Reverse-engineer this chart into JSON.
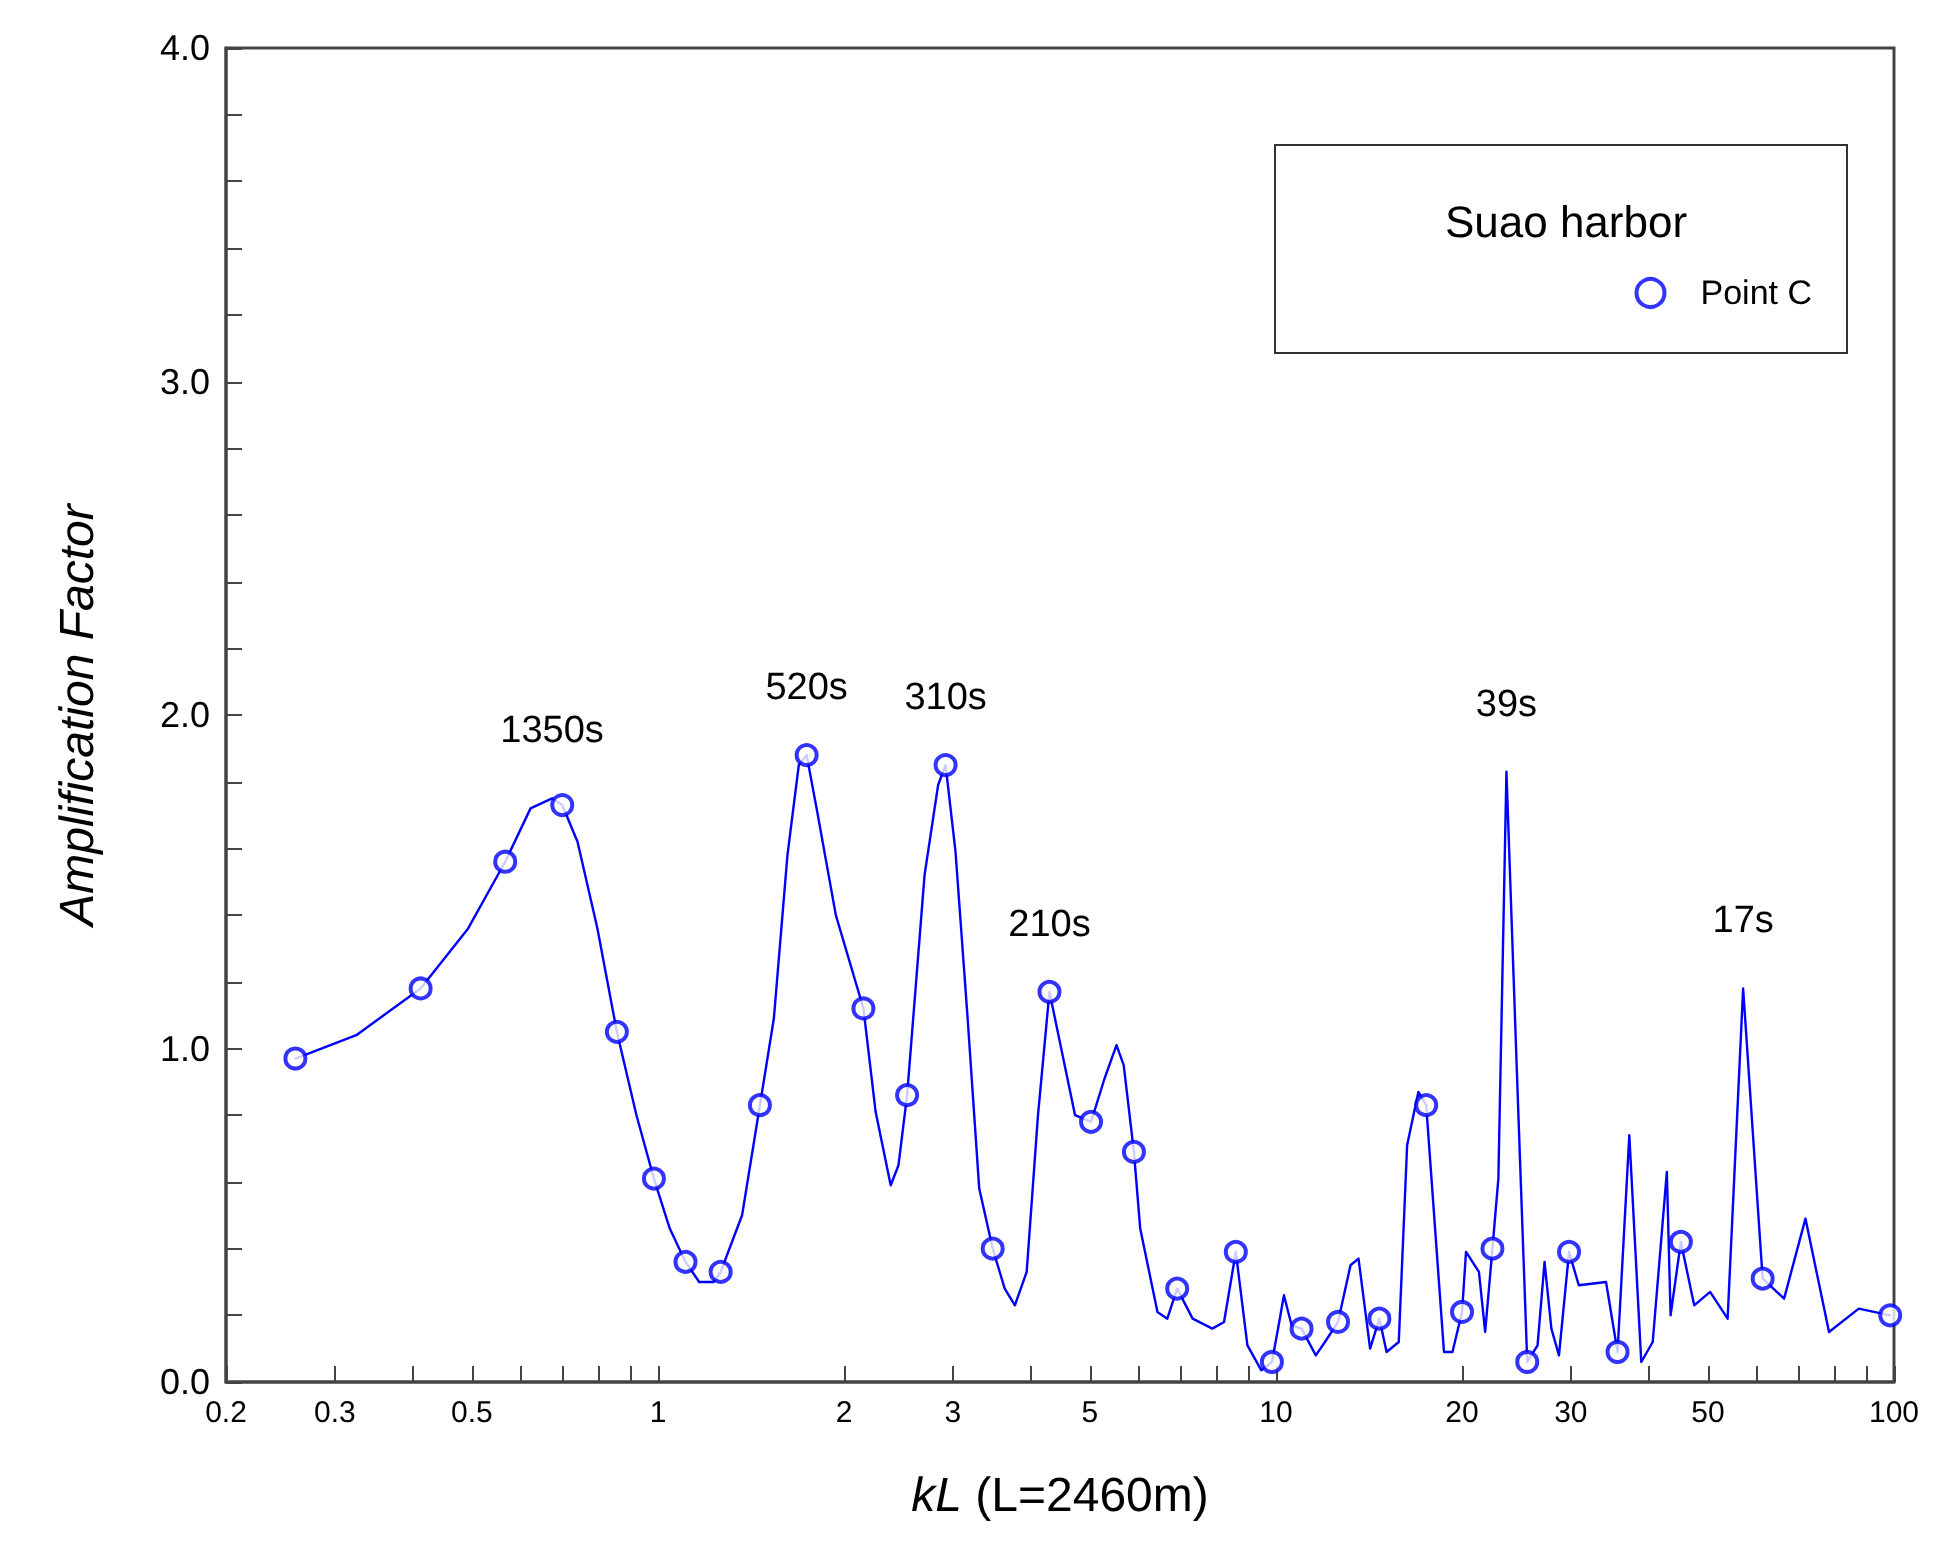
{
  "chart_data": {
    "type": "line",
    "xlabel": "kL (L=2460m)",
    "ylabel": "Amplification Factor",
    "legend_title": "Suao harbor",
    "legend": "top right",
    "grid": false,
    "log": "x",
    "xlim": [
      0.2,
      100
    ],
    "ylim": [
      0,
      4
    ],
    "xticks": [
      0.2,
      0.3,
      {
        "value": 0.4,
        "label": null
      },
      0.5,
      {
        "value": 0.6,
        "label": null
      },
      {
        "value": 0.7,
        "label": null
      },
      {
        "value": 0.8,
        "label": null
      },
      {
        "value": 0.9,
        "label": null
      },
      1,
      2,
      3,
      {
        "value": 4,
        "label": null
      },
      5,
      {
        "value": 6,
        "label": null
      },
      {
        "value": 7,
        "label": null
      },
      {
        "value": 8,
        "label": null
      },
      {
        "value": 9,
        "label": null
      },
      10,
      20,
      30,
      {
        "value": 40,
        "label": null
      },
      50,
      {
        "value": 60,
        "label": null
      },
      {
        "value": 70,
        "label": null
      },
      {
        "value": 80,
        "label": null
      },
      {
        "value": 90,
        "label": null
      },
      100
    ],
    "yticks": [
      {
        "value": 0,
        "label": "0.0"
      },
      {
        "value": 0.2,
        "label": null
      },
      {
        "value": 0.4,
        "label": null
      },
      {
        "value": 0.6,
        "label": null
      },
      {
        "value": 0.8,
        "label": null
      },
      {
        "value": 1,
        "label": "1.0"
      },
      {
        "value": 1.2,
        "label": null
      },
      {
        "value": 1.4,
        "label": null
      },
      {
        "value": 1.6,
        "label": null
      },
      {
        "value": 1.8,
        "label": null
      },
      {
        "value": 2,
        "label": "2.0"
      },
      {
        "value": 2.2,
        "label": null
      },
      {
        "value": 2.4,
        "label": null
      },
      {
        "value": 2.6,
        "label": null
      },
      {
        "value": 2.8,
        "label": null
      },
      {
        "value": 3,
        "label": "3.0"
      },
      {
        "value": 3.2,
        "label": null
      },
      {
        "value": 3.4,
        "label": null
      },
      {
        "value": 3.6,
        "label": null
      },
      {
        "value": 3.8,
        "label": null
      },
      {
        "value": 4,
        "label": "4.0"
      }
    ],
    "series": [
      {
        "color": "#0000ff",
        "marker": "none",
        "line_style": "solid",
        "x": [
          0.259,
          0.325,
          0.413,
          0.493,
          0.566,
          0.622,
          0.674,
          0.7,
          0.741,
          0.798,
          0.858,
          0.923,
          0.985,
          1.045,
          1.108,
          1.166,
          1.23,
          1.263,
          1.368,
          1.462,
          1.54,
          1.62,
          1.69,
          1.74,
          1.81,
          1.94,
          2.15,
          2.25,
          2.38,
          2.45,
          2.53,
          2.7,
          2.84,
          2.92,
          3.03,
          3.17,
          3.31,
          3.48,
          3.64,
          3.78,
          3.95,
          4.12,
          4.3,
          4.73,
          5.02,
          5.28,
          5.52,
          5.67,
          5.89,
          6.03,
          6.43,
          6.67,
          6.92,
          7.33,
          7.89,
          8.24,
          8.61,
          8.99,
          9.47,
          9.85,
          10.1,
          10.3,
          10.6,
          11.0,
          11.6,
          12.0,
          12.6,
          13.2,
          13.6,
          14.2,
          14.7,
          15.1,
          15.8,
          16.3,
          17.0,
          17.5,
          18.7,
          19.3,
          20.0,
          20.3,
          21.3,
          21.8,
          22.4,
          22.9,
          23.6,
          24.6,
          25.5,
          26.5,
          27.2,
          27.9,
          28.7,
          29.8,
          30.9,
          34.2,
          35.7,
          37.3,
          39.0,
          40.7,
          42.9,
          43.5,
          45.2,
          47.5,
          50.4,
          53.8,
          57.0,
          61.3,
          66.4,
          71.9,
          78.5,
          87.7,
          98.6
        ],
        "values": [
          0.97,
          1.04,
          1.18,
          1.36,
          1.56,
          1.72,
          1.75,
          1.73,
          1.62,
          1.36,
          1.05,
          0.8,
          0.61,
          0.46,
          0.36,
          0.3,
          0.3,
          0.33,
          0.5,
          0.83,
          1.09,
          1.58,
          1.85,
          1.88,
          1.71,
          1.4,
          1.12,
          0.81,
          0.59,
          0.65,
          0.86,
          1.52,
          1.79,
          1.85,
          1.59,
          1.09,
          0.58,
          0.4,
          0.28,
          0.23,
          0.33,
          0.8,
          1.17,
          0.8,
          0.78,
          0.91,
          1.01,
          0.95,
          0.69,
          0.46,
          0.21,
          0.19,
          0.28,
          0.19,
          0.16,
          0.18,
          0.39,
          0.11,
          0.035,
          0.06,
          0.17,
          0.26,
          0.17,
          0.16,
          0.08,
          0.12,
          0.18,
          0.35,
          0.37,
          0.1,
          0.19,
          0.09,
          0.12,
          0.71,
          0.87,
          0.83,
          0.09,
          0.09,
          0.21,
          0.39,
          0.33,
          0.15,
          0.4,
          0.61,
          1.83,
          0.87,
          0.06,
          0.11,
          0.36,
          0.16,
          0.08,
          0.39,
          0.29,
          0.3,
          0.09,
          0.74,
          0.06,
          0.12,
          0.63,
          0.2,
          0.42,
          0.23,
          0.27,
          0.19,
          1.18,
          0.31,
          0.25,
          0.49,
          0.15,
          0.22,
          0.2
        ]
      },
      {
        "type": "scatter",
        "name": "Point C",
        "color": "#0000ff",
        "marker": "circle",
        "x": [
          0.259,
          0.413,
          0.566,
          0.7,
          0.858,
          0.985,
          1.108,
          1.263,
          1.462,
          1.74,
          2.15,
          2.53,
          2.92,
          3.48,
          4.3,
          5.02,
          5.89,
          6.92,
          8.61,
          9.85,
          11.0,
          12.6,
          14.7,
          17.5,
          20.0,
          22.4,
          25.5,
          29.8,
          35.7,
          45.2,
          61.3,
          98.6
        ],
        "values": [
          0.97,
          1.18,
          1.56,
          1.73,
          1.05,
          0.61,
          0.36,
          0.33,
          0.83,
          1.88,
          1.12,
          0.86,
          1.85,
          0.4,
          1.17,
          0.78,
          0.69,
          0.28,
          0.39,
          0.06,
          0.16,
          0.18,
          0.19,
          0.83,
          0.21,
          0.4,
          0.06,
          0.39,
          0.09,
          0.42,
          0.31,
          0.2
        ]
      }
    ],
    "annotations": [
      {
        "text": "1350s",
        "x": 0.674,
        "y": 1.75
      },
      {
        "text": "520s",
        "x": 1.74,
        "y": 1.88
      },
      {
        "text": "310s",
        "x": 2.92,
        "y": 1.85
      },
      {
        "text": "210s",
        "x": 4.3,
        "y": 1.17
      },
      {
        "text": "39s",
        "x": 23.6,
        "y": 1.83
      },
      {
        "text": "17s",
        "x": 57.0,
        "y": 1.18
      }
    ]
  }
}
